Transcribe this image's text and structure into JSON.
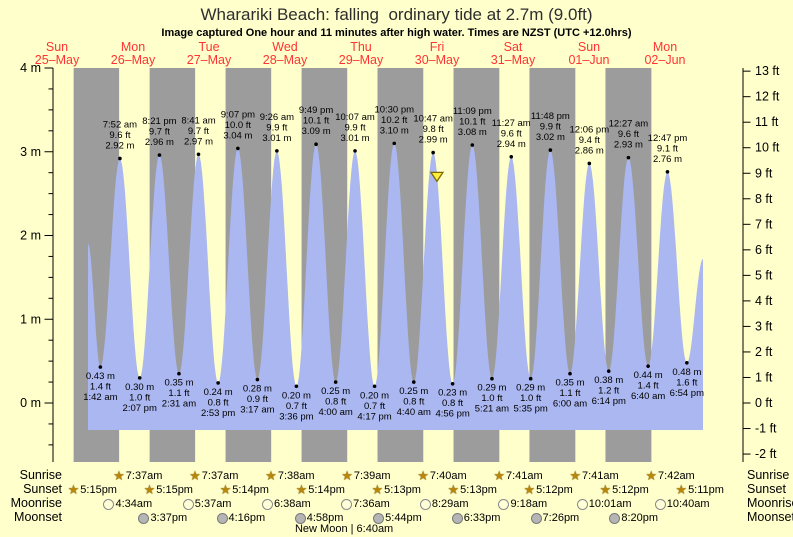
{
  "title": "Wharariki Beach: falling  ordinary tide at 2.7m (9.0ft)",
  "subtitle": "Image captured One hour and 11 minutes after high water. Times are NZST (UTC +12.0hrs)",
  "colors": {
    "background": "#FFFFCC",
    "night_band": "#9C9C9C",
    "day_band": "#FFFFCC",
    "tide_fill": "#AAB7F0",
    "day_label_red": "#FF3333",
    "marker_yellow": "#FFEE3C",
    "star_gold": "#B8860B"
  },
  "days": [
    {
      "name": "Sun",
      "date": "25–May"
    },
    {
      "name": "Mon",
      "date": "26–May"
    },
    {
      "name": "Tue",
      "date": "27–May"
    },
    {
      "name": "Wed",
      "date": "28–May"
    },
    {
      "name": "Thu",
      "date": "29–May"
    },
    {
      "name": "Fri",
      "date": "30–May"
    },
    {
      "name": "Sat",
      "date": "31–May"
    },
    {
      "name": "Sun",
      "date": "01–Jun"
    },
    {
      "name": "Mon",
      "date": "02–Jun"
    }
  ],
  "chart_data": {
    "type": "area",
    "series_name": "tide height",
    "y_left": {
      "unit": "m",
      "major_ticks": [
        0,
        1,
        2,
        3,
        4
      ],
      "minor_step": 0.25,
      "min": -0.5,
      "max": 4
    },
    "y_right": {
      "unit": "ft",
      "tick_min": -2,
      "tick_max": 13
    },
    "ylim_m": [
      -0.7,
      4
    ],
    "area_baseline_m": -0.32,
    "extremes": [
      {
        "kind": "low",
        "day": 1,
        "time": "1:42 am",
        "m": 0.43,
        "ft": 1.4
      },
      {
        "kind": "high",
        "day": 1,
        "time": "7:52 am",
        "m": 2.92,
        "ft": 9.6
      },
      {
        "kind": "low",
        "day": 1,
        "time": "2:07 pm",
        "m": 0.3,
        "ft": 1.0
      },
      {
        "kind": "high",
        "day": 1,
        "time": "8:21 pm",
        "m": 2.96,
        "ft": 9.7
      },
      {
        "kind": "low",
        "day": 2,
        "time": "2:31 am",
        "m": 0.35,
        "ft": 1.1
      },
      {
        "kind": "high",
        "day": 2,
        "time": "8:41 am",
        "m": 2.97,
        "ft": 9.7
      },
      {
        "kind": "low",
        "day": 2,
        "time": "2:53 pm",
        "m": 0.24,
        "ft": 0.8
      },
      {
        "kind": "high",
        "day": 2,
        "time": "9:07 pm",
        "m": 3.04,
        "ft": 10.0
      },
      {
        "kind": "low",
        "day": 3,
        "time": "3:17 am",
        "m": 0.28,
        "ft": 0.9
      },
      {
        "kind": "high",
        "day": 3,
        "time": "9:26 am",
        "m": 3.01,
        "ft": 9.9
      },
      {
        "kind": "low",
        "day": 3,
        "time": "3:36 pm",
        "m": 0.2,
        "ft": 0.7
      },
      {
        "kind": "high",
        "day": 3,
        "time": "9:49 pm",
        "m": 3.09,
        "ft": 10.1
      },
      {
        "kind": "low",
        "day": 4,
        "time": "4:00 am",
        "m": 0.25,
        "ft": 0.8
      },
      {
        "kind": "high",
        "day": 4,
        "time": "10:07 am",
        "m": 3.01,
        "ft": 9.9
      },
      {
        "kind": "low",
        "day": 4,
        "time": "4:17 pm",
        "m": 0.2,
        "ft": 0.7
      },
      {
        "kind": "high",
        "day": 4,
        "time": "10:30 pm",
        "m": 3.1,
        "ft": 10.2
      },
      {
        "kind": "low",
        "day": 5,
        "time": "4:40 am",
        "m": 0.25,
        "ft": 0.8
      },
      {
        "kind": "high",
        "day": 5,
        "time": "10:47 am",
        "m": 2.99,
        "ft": 9.8
      },
      {
        "kind": "low",
        "day": 5,
        "time": "4:56 pm",
        "m": 0.23,
        "ft": 0.8
      },
      {
        "kind": "high",
        "day": 5,
        "time": "11:09 pm",
        "m": 3.08,
        "ft": 10.1
      },
      {
        "kind": "low",
        "day": 6,
        "time": "5:21 am",
        "m": 0.29,
        "ft": 1.0
      },
      {
        "kind": "high",
        "day": 6,
        "time": "11:27 am",
        "m": 2.94,
        "ft": 9.6
      },
      {
        "kind": "low",
        "day": 6,
        "time": "5:35 pm",
        "m": 0.29,
        "ft": 1.0
      },
      {
        "kind": "high",
        "day": 6,
        "time": "11:48 pm",
        "m": 3.02,
        "ft": 9.9
      },
      {
        "kind": "low",
        "day": 7,
        "time": "6:00 am",
        "m": 0.35,
        "ft": 1.1
      },
      {
        "kind": "high",
        "day": 7,
        "time": "12:06 pm",
        "m": 2.86,
        "ft": 9.4
      },
      {
        "kind": "low",
        "day": 7,
        "time": "6:14 pm",
        "m": 0.38,
        "ft": 1.2
      },
      {
        "kind": "high",
        "day": 8,
        "time": "12:27 am",
        "m": 2.93,
        "ft": 9.6
      },
      {
        "kind": "low",
        "day": 8,
        "time": "6:40 am",
        "m": 0.44,
        "ft": 1.4
      },
      {
        "kind": "high",
        "day": 8,
        "time": "12:47 pm",
        "m": 2.76,
        "ft": 9.1
      },
      {
        "kind": "low",
        "day": 8,
        "time": "6:54 pm",
        "m": 0.48,
        "ft": 1.6
      }
    ],
    "curve_clip": {
      "start_day": 0.908,
      "start_m": 1.9,
      "end_day": 9.0,
      "end_m": 1.72
    },
    "current_marker": {
      "day_frac": 5.499,
      "m": 2.7
    }
  },
  "astro": {
    "rows": [
      {
        "label": "Sunrise",
        "icon": "sun-star",
        "events": [
          {
            "day": 1,
            "time": "7:37am"
          },
          {
            "day": 2,
            "time": "7:37am"
          },
          {
            "day": 3,
            "time": "7:38am"
          },
          {
            "day": 4,
            "time": "7:39am"
          },
          {
            "day": 5,
            "time": "7:40am"
          },
          {
            "day": 6,
            "time": "7:41am"
          },
          {
            "day": 7,
            "time": "7:41am"
          },
          {
            "day": 8,
            "time": "7:42am"
          }
        ]
      },
      {
        "label": "Sunset",
        "icon": "sun-star",
        "events": [
          {
            "day": 0,
            "time": "5:15pm"
          },
          {
            "day": 1,
            "time": "5:15pm"
          },
          {
            "day": 2,
            "time": "5:14pm"
          },
          {
            "day": 3,
            "time": "5:14pm"
          },
          {
            "day": 4,
            "time": "5:13pm"
          },
          {
            "day": 5,
            "time": "5:13pm"
          },
          {
            "day": 6,
            "time": "5:12pm"
          },
          {
            "day": 7,
            "time": "5:12pm"
          },
          {
            "day": 8,
            "time": "5:11pm"
          }
        ]
      },
      {
        "label": "Moonrise",
        "icon": "moon-light",
        "events": [
          {
            "day": 1,
            "time": "4:34am"
          },
          {
            "day": 2,
            "time": "5:37am"
          },
          {
            "day": 3,
            "time": "6:38am"
          },
          {
            "day": 4,
            "time": "7:36am"
          },
          {
            "day": 5,
            "time": "8:29am"
          },
          {
            "day": 6,
            "time": "9:18am"
          },
          {
            "day": 7,
            "time": "10:01am"
          },
          {
            "day": 8,
            "time": "10:40am"
          }
        ]
      },
      {
        "label": "Moonset",
        "icon": "moon-dark",
        "events": [
          {
            "day": 1,
            "time": "3:37pm"
          },
          {
            "day": 2,
            "time": "4:16pm"
          },
          {
            "day": 3,
            "time": "4:58pm"
          },
          {
            "day": 4,
            "time": "5:44pm"
          },
          {
            "day": 5,
            "time": "6:33pm"
          },
          {
            "day": 6,
            "time": "7:26pm"
          },
          {
            "day": 7,
            "time": "8:20pm"
          }
        ]
      }
    ],
    "new_moon": {
      "label": "New Moon | 6:40am",
      "day": 4,
      "time": "6:40am"
    }
  }
}
